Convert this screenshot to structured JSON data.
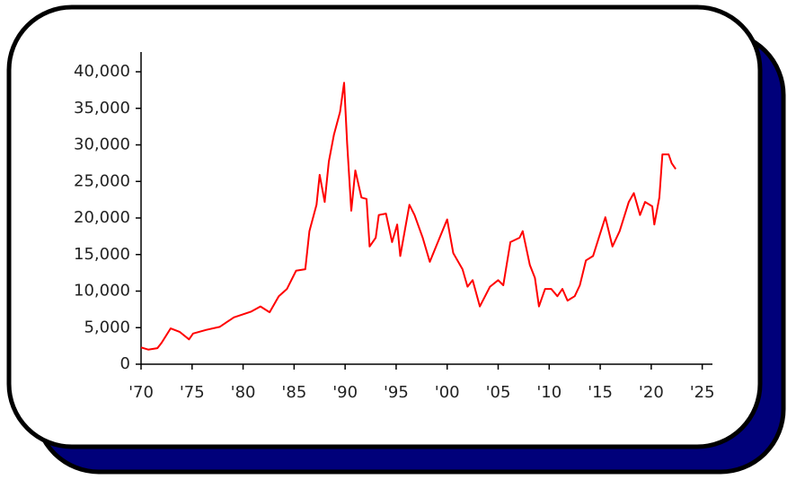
{
  "chart_data": {
    "type": "line",
    "x": [
      1970,
      1970.7,
      1971.6,
      1972,
      1972.9,
      1973.8,
      1974.7,
      1975.1,
      1976.4,
      1977.7,
      1979.1,
      1980.8,
      1981.7,
      1982.6,
      1983.5,
      1984.3,
      1985.2,
      1986.1,
      1986.5,
      1987.2,
      1987.5,
      1988.0,
      1988.4,
      1988.9,
      1989.5,
      1989.9,
      1990.2,
      1990.6,
      1991.0,
      1991.6,
      1992.1,
      1992.4,
      1993.0,
      1993.3,
      1994.0,
      1994.6,
      1995.1,
      1995.4,
      1996.3,
      1996.8,
      1997.6,
      1998.3,
      1999.0,
      2000.0,
      2000.6,
      2001.5,
      2002.0,
      2002.5,
      2003.2,
      2004.2,
      2005.0,
      2005.5,
      2006.2,
      2007.1,
      2007.4,
      2008.1,
      2008.6,
      2009.0,
      2009.6,
      2010.2,
      2010.8,
      2011.3,
      2011.8,
      2012.5,
      2013.0,
      2013.6,
      2014.3,
      2015.0,
      2015.5,
      2016.2,
      2016.9,
      2017.8,
      2018.3,
      2018.9,
      2019.4,
      2020.1,
      2020.3,
      2020.8,
      2021.1,
      2021.7,
      2022.0,
      2022.4
    ],
    "values": [
      2300,
      2000,
      2200,
      2900,
      4900,
      4400,
      3400,
      4200,
      4700,
      5100,
      6400,
      7200,
      7900,
      7100,
      9300,
      10300,
      12800,
      13000,
      18200,
      21800,
      25900,
      22200,
      27700,
      31400,
      34500,
      38500,
      30200,
      21000,
      26500,
      22800,
      22600,
      16100,
      17300,
      20400,
      20600,
      16700,
      19100,
      14800,
      21800,
      20400,
      17300,
      14000,
      16400,
      19800,
      15200,
      13000,
      10600,
      11500,
      7900,
      10600,
      11500,
      10800,
      16700,
      17300,
      18200,
      13600,
      11800,
      7900,
      10300,
      10300,
      9300,
      10300,
      8700,
      9300,
      10800,
      14200,
      14800,
      17900,
      20100,
      16100,
      18200,
      22200,
      23400,
      20400,
      22200,
      21600,
      19100,
      22800,
      28700,
      28700,
      27500,
      26700
    ],
    "color": "#ff0000",
    "xlim": [
      1970,
      2026
    ],
    "ylim": [
      0,
      42700
    ],
    "xticks": [
      {
        "value": 1970,
        "label": "'70"
      },
      {
        "value": 1975,
        "label": "'75"
      },
      {
        "value": 1980,
        "label": "'80"
      },
      {
        "value": 1985,
        "label": "'85"
      },
      {
        "value": 1990,
        "label": "'90"
      },
      {
        "value": 1995,
        "label": "'95"
      },
      {
        "value": 2000,
        "label": "'00"
      },
      {
        "value": 2005,
        "label": "'05"
      },
      {
        "value": 2010,
        "label": "'10"
      },
      {
        "value": 2015,
        "label": "'15"
      },
      {
        "value": 2020,
        "label": "'20"
      },
      {
        "value": 2025,
        "label": "'25"
      }
    ],
    "yticks": [
      0,
      {
        "value": 5000,
        "label": "5,000"
      },
      {
        "value": 10000,
        "label": "10,000"
      },
      {
        "value": 15000,
        "label": "15,000"
      },
      {
        "value": 20000,
        "label": "20,000"
      },
      {
        "value": 25000,
        "label": "25,000"
      },
      {
        "value": 30000,
        "label": "30,000"
      },
      {
        "value": 35000,
        "label": "35,000"
      },
      {
        "value": 40000,
        "label": "40,000"
      }
    ]
  }
}
